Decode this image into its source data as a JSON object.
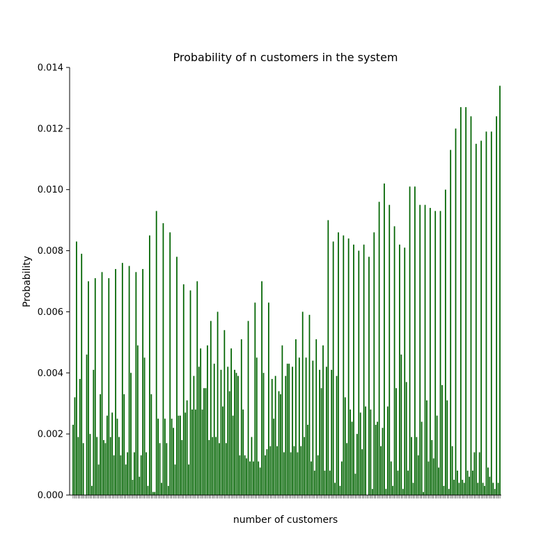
{
  "chart_data": {
    "type": "bar",
    "title": "Probability of n customers in the system",
    "xlabel": "number of customers",
    "ylabel": "Probability",
    "ylim": [
      0,
      0.014
    ],
    "yticks": [
      "0.000",
      "0.002",
      "0.004",
      "0.006",
      "0.008",
      "0.010",
      "0.012",
      "0.014"
    ],
    "xlim": [
      0,
      220
    ],
    "x_tick_labels_note": "overlapping, illegible",
    "grid": false,
    "bar_color": "#006400",
    "series": [
      {
        "values": [
          0.0023,
          0.0032,
          0.0083,
          0.0019,
          0.0038,
          0.0079,
          0.0017,
          0.0,
          0.0046,
          0.007,
          0.002,
          0.0003,
          0.0041,
          0.0071,
          0.0019,
          0.001,
          0.0033,
          0.0073,
          0.0018,
          0.0017,
          0.0026,
          0.0071,
          0.0019,
          0.0027,
          0.0013,
          0.0074,
          0.0025,
          0.0019,
          0.0013,
          0.0076,
          0.0033,
          0.001,
          0.0014,
          0.0075,
          0.004,
          0.0005,
          0.0014,
          0.0073,
          0.0049,
          0.0006,
          0.0013,
          0.0074,
          0.0045,
          0.0014,
          0.0003,
          0.0085,
          0.0033,
          0.0001,
          0.0001,
          0.0093,
          0.0025,
          0.0017,
          0.0004,
          0.0089,
          0.0025,
          0.0017,
          0.0003,
          0.0086,
          0.0025,
          0.0022,
          0.001,
          0.0078,
          0.0026,
          0.0026,
          0.0018,
          0.0069,
          0.0027,
          0.0031,
          0.001,
          0.0067,
          0.0028,
          0.0039,
          0.0028,
          0.007,
          0.0042,
          0.0048,
          0.0028,
          0.0035,
          0.0035,
          0.0049,
          0.0018,
          0.0057,
          0.0019,
          0.0043,
          0.0019,
          0.006,
          0.0017,
          0.0041,
          0.0029,
          0.0054,
          0.0017,
          0.0042,
          0.0034,
          0.0048,
          0.0026,
          0.0041,
          0.004,
          0.0039,
          0.0013,
          0.0051,
          0.0028,
          0.0013,
          0.0012,
          0.0057,
          0.0011,
          0.0019,
          0.0011,
          0.0063,
          0.0045,
          0.0011,
          0.0009,
          0.007,
          0.004,
          0.0013,
          0.0015,
          0.0063,
          0.0016,
          0.0038,
          0.0025,
          0.0039,
          0.0016,
          0.0034,
          0.0033,
          0.0049,
          0.0014,
          0.0039,
          0.0043,
          0.0043,
          0.0014,
          0.0042,
          0.0016,
          0.0051,
          0.0014,
          0.0045,
          0.0016,
          0.006,
          0.0019,
          0.0045,
          0.0023,
          0.0059,
          0.0011,
          0.0044,
          0.0008,
          0.0051,
          0.0013,
          0.0041,
          0.0035,
          0.0049,
          0.0008,
          0.0042,
          0.009,
          0.0008,
          0.0041,
          0.0083,
          0.0004,
          0.0039,
          0.0086,
          0.0003,
          0.0011,
          0.0085,
          0.0032,
          0.0017,
          0.0084,
          0.0028,
          0.0024,
          0.0082,
          0.0007,
          0.002,
          0.008,
          0.0027,
          0.0015,
          0.0082,
          0.0029,
          0.0,
          0.0078,
          0.0028,
          0.0002,
          0.0086,
          0.0023,
          0.0024,
          0.0096,
          0.0016,
          0.0022,
          0.0102,
          0.0002,
          0.0029,
          0.0095,
          0.0011,
          0.0003,
          0.0088,
          0.0035,
          0.0008,
          0.0082,
          0.0046,
          0.0002,
          0.0081,
          0.0037,
          0.0008,
          0.0101,
          0.0019,
          0.0004,
          0.0101,
          0.0019,
          0.0013,
          0.0095,
          0.0024,
          0.0001,
          0.0095,
          0.0031,
          0.0011,
          0.0094,
          0.0018,
          0.0012,
          0.0093,
          0.0026,
          0.0009,
          0.0093,
          0.0036,
          0.0003,
          0.01,
          0.0031,
          0.0002,
          0.0113,
          0.0016,
          0.0005,
          0.012,
          0.0008,
          0.0004,
          0.0127,
          0.0005,
          0.0004,
          0.0127,
          0.0008,
          0.0006,
          0.0124,
          0.0008,
          0.0014,
          0.0115,
          0.0004,
          0.0014,
          0.0116,
          0.0004,
          0.0003,
          0.0119,
          0.0009,
          0.0006,
          0.0119,
          0.0004,
          0.0002,
          0.0124,
          0.0004,
          0.0134
        ]
      }
    ]
  }
}
